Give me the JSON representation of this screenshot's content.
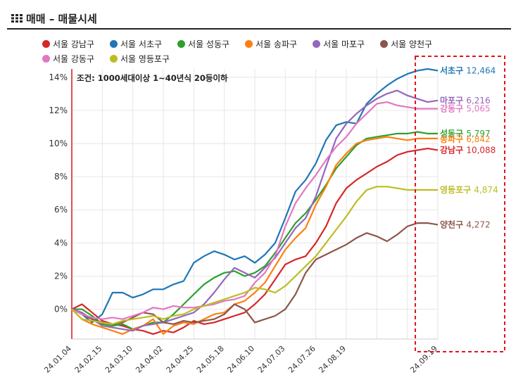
{
  "header": {
    "title": "매매 – 매물시세",
    "icon": "grid-icon"
  },
  "note": "조건: 1000세대이상 1~40년식 20등이하",
  "chart_data": {
    "type": "line",
    "title": "매매 – 매물시세",
    "xlabel": "",
    "ylabel": "",
    "ylim": [
      -1.8,
      14.5
    ],
    "yticks": [
      0,
      2,
      4,
      6,
      8,
      10,
      12,
      14
    ],
    "ytick_labels": [
      "0%",
      "2%",
      "4%",
      "6%",
      "8%",
      "10%",
      "12%",
      "14%"
    ],
    "x_count": 37,
    "xticks": [
      0,
      3,
      6,
      9,
      12,
      15,
      18,
      21,
      24,
      27,
      30,
      33,
      36
    ],
    "xtick_labels": [
      "24.01.04",
      "24.02.15",
      "24.03.10",
      "24.04.02",
      "24.04.25",
      "24.05.18",
      "24.06.10",
      "24.07.03",
      "24.07.26",
      "24.08.19",
      "24.09.19"
    ],
    "xtick_label_index": [
      0,
      3,
      6,
      9,
      12,
      15,
      18,
      21,
      24,
      27,
      36
    ],
    "series": [
      {
        "name": "서울 강남구",
        "short": "강남구",
        "end_label": "10,088",
        "color": "#d62728",
        "values": [
          0,
          0.3,
          -0.2,
          -0.7,
          -0.9,
          -1.0,
          -1.2,
          -1.3,
          -1.5,
          -1.3,
          -1.4,
          -1.1,
          -0.7,
          -0.9,
          -0.8,
          -0.6,
          -0.4,
          -0.2,
          0.3,
          0.9,
          1.8,
          2.7,
          3.0,
          3.2,
          4.0,
          5.0,
          6.4,
          7.3,
          7.8,
          8.2,
          8.6,
          8.9,
          9.3,
          9.5,
          9.6,
          9.7,
          9.6
        ]
      },
      {
        "name": "서울 서초구",
        "short": "서초구",
        "end_label": "12,464",
        "color": "#1f77b4",
        "values": [
          0,
          -0.3,
          -0.8,
          -0.3,
          1.0,
          1.0,
          0.7,
          0.9,
          1.2,
          1.2,
          1.5,
          1.7,
          2.8,
          3.2,
          3.5,
          3.3,
          3.0,
          3.2,
          2.8,
          3.3,
          4.0,
          5.5,
          7.1,
          7.8,
          8.8,
          10.2,
          11.1,
          11.3,
          11.2,
          12.4,
          13.0,
          13.5,
          13.9,
          14.2,
          14.4,
          14.5,
          14.4
        ]
      },
      {
        "name": "서울 성동구",
        "short": "성동구",
        "end_label": "5,797",
        "color": "#2ca02c",
        "values": [
          0,
          0,
          -0.4,
          -0.9,
          -1.0,
          -0.9,
          -1.2,
          -1.0,
          -0.8,
          -0.8,
          -0.3,
          0.3,
          0.9,
          1.5,
          1.9,
          2.2,
          2.3,
          2.0,
          2.2,
          2.6,
          3.4,
          4.3,
          5.2,
          5.8,
          6.6,
          7.5,
          8.5,
          9.2,
          9.9,
          10.3,
          10.4,
          10.5,
          10.6,
          10.6,
          10.7,
          10.6,
          10.6
        ]
      },
      {
        "name": "서울 송파구",
        "short": "송파구",
        "end_label": "6,842",
        "color": "#ff7f0e",
        "values": [
          0,
          -0.6,
          -0.9,
          -1.1,
          -1.3,
          -1.5,
          -1.2,
          -1.0,
          -0.6,
          -1.5,
          -1.0,
          -0.8,
          -0.9,
          -0.6,
          -0.3,
          -0.2,
          0.3,
          0.5,
          1.0,
          1.6,
          2.6,
          3.6,
          4.3,
          4.9,
          6.3,
          7.4,
          8.7,
          9.4,
          10.0,
          10.2,
          10.3,
          10.4,
          10.3,
          10.2,
          10.3,
          10.3,
          10.3
        ]
      },
      {
        "name": "서울 마포구",
        "short": "마포구",
        "end_label": "6,216",
        "color": "#9467bd",
        "values": [
          0,
          -0.2,
          -0.6,
          -1.0,
          -1.1,
          -1.2,
          -1.3,
          -1.0,
          -0.9,
          -0.8,
          -0.6,
          -0.4,
          -0.2,
          0.3,
          1.0,
          1.8,
          2.5,
          2.2,
          1.9,
          2.5,
          3.1,
          4.0,
          4.9,
          5.5,
          6.8,
          8.6,
          10.3,
          11.2,
          11.8,
          12.3,
          12.7,
          13.0,
          13.2,
          12.9,
          12.7,
          12.5,
          12.6
        ]
      },
      {
        "name": "서울 양천구",
        "short": "양천구",
        "end_label": "4,272",
        "color": "#8c564b",
        "values": [
          0,
          -0.3,
          -0.6,
          -0.8,
          -0.9,
          -0.8,
          -0.5,
          -0.2,
          -0.3,
          -0.8,
          -0.9,
          -0.7,
          -0.8,
          -0.7,
          -0.6,
          -0.3,
          0.3,
          0.0,
          -0.8,
          -0.6,
          -0.4,
          0.0,
          0.9,
          2.2,
          3.0,
          3.3,
          3.6,
          3.9,
          4.3,
          4.6,
          4.4,
          4.1,
          4.5,
          5.0,
          5.2,
          5.2,
          5.1
        ]
      },
      {
        "name": "서울 강동구",
        "short": "강동구",
        "end_label": "5,065",
        "color": "#e377c2",
        "values": [
          0,
          -0.3,
          -0.5,
          -0.6,
          -0.5,
          -0.6,
          -0.4,
          -0.2,
          0.1,
          0.0,
          0.2,
          0.1,
          0.1,
          0.2,
          0.3,
          0.5,
          0.6,
          0.8,
          1.6,
          2.2,
          3.2,
          5.0,
          6.4,
          7.3,
          8.1,
          9.0,
          9.8,
          10.4,
          11.2,
          11.8,
          12.4,
          12.5,
          12.3,
          12.2,
          12.1,
          12.1,
          12.1
        ]
      },
      {
        "name": "서울 영등포구",
        "short": "영등포구",
        "end_label": "4,874",
        "color": "#bcbd22",
        "values": [
          0,
          -0.6,
          -0.7,
          -0.8,
          -0.9,
          -0.7,
          -0.6,
          -0.5,
          -0.4,
          -0.6,
          -0.4,
          -0.3,
          0.0,
          0.2,
          0.4,
          0.6,
          0.8,
          1.0,
          1.3,
          1.2,
          1.0,
          1.4,
          2.0,
          2.6,
          3.2,
          4.0,
          4.8,
          5.6,
          6.5,
          7.2,
          7.4,
          7.4,
          7.3,
          7.2,
          7.2,
          7.2,
          7.2
        ]
      }
    ]
  }
}
